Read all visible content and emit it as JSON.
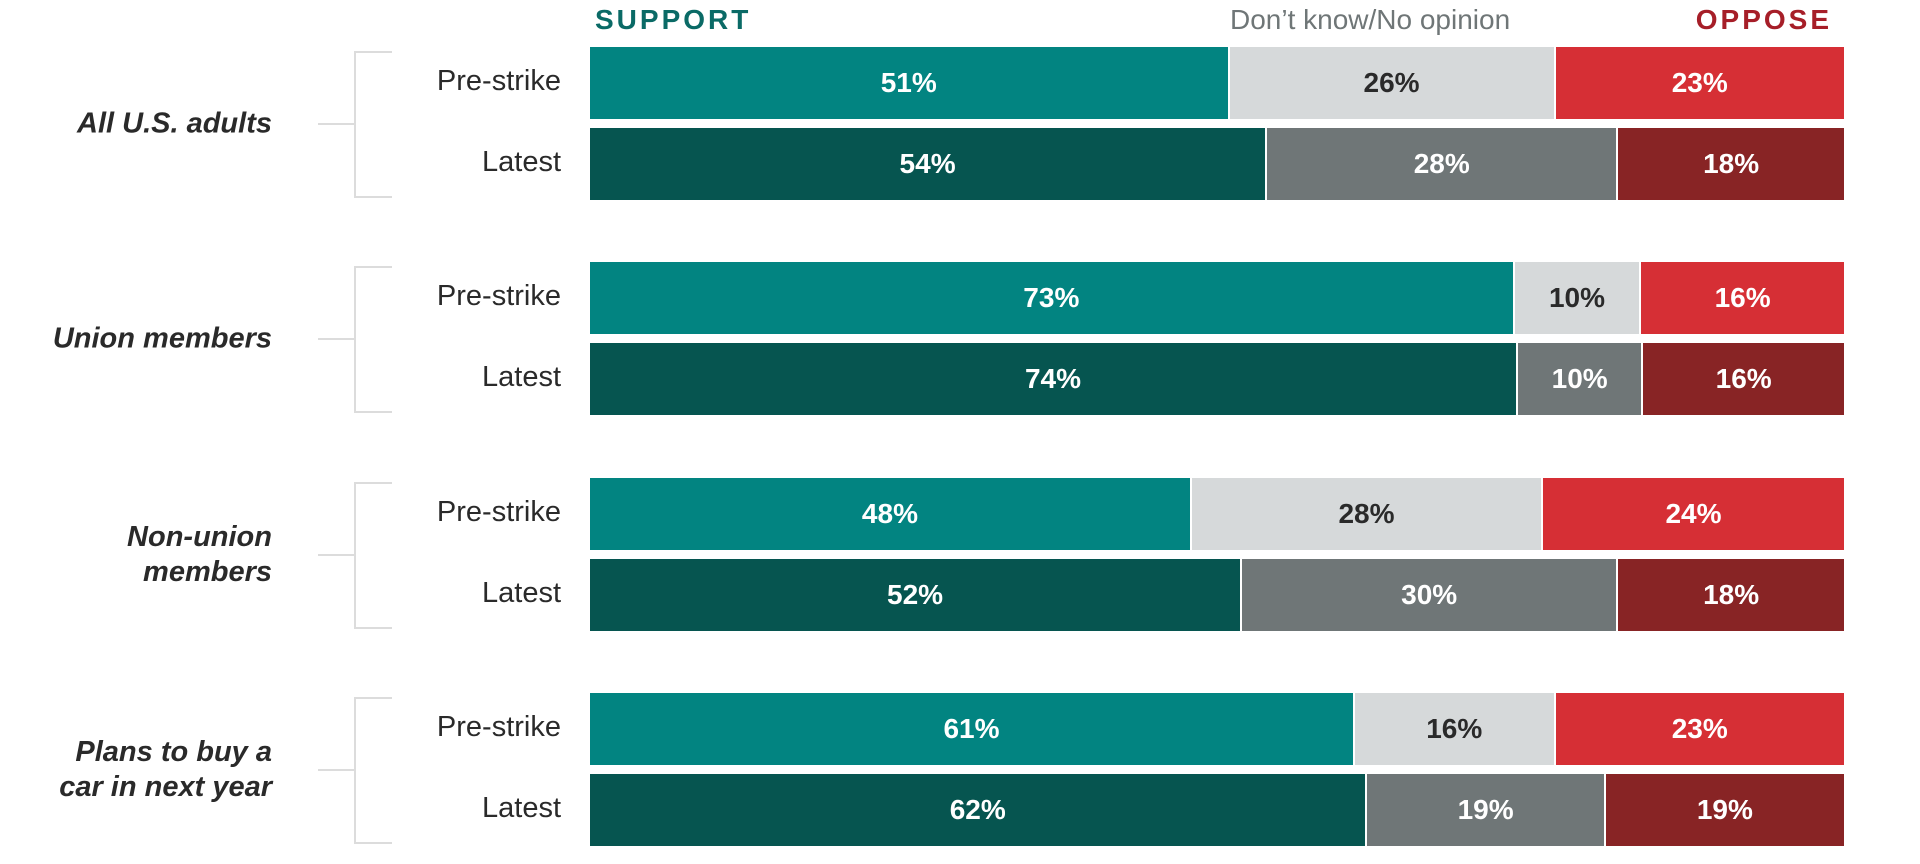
{
  "chart_data": {
    "type": "bar",
    "orientation": "horizontal",
    "stacked": true,
    "normalized": true,
    "title": "",
    "legend": [
      "SUPPORT",
      "Don’t know/No opinion",
      "OPPOSE"
    ],
    "legend_position": "top",
    "series_colors": {
      "SUPPORT": {
        "pre_strike": "#028481",
        "latest": "#065550"
      },
      "Don’t know/No opinion": {
        "pre_strike": "#d6d9da",
        "latest": "#6f7677"
      },
      "OPPOSE": {
        "pre_strike": "#d62f35",
        "latest": "#882425"
      }
    },
    "xlim": [
      0,
      100
    ],
    "grid": false,
    "groups": [
      {
        "label": "All U.S. adults",
        "rows": [
          {
            "label": "Pre-strike",
            "support": 51,
            "dont_know": 26,
            "oppose": 23
          },
          {
            "label": "Latest",
            "support": 54,
            "dont_know": 28,
            "oppose": 18
          }
        ]
      },
      {
        "label": "Union members",
        "rows": [
          {
            "label": "Pre-strike",
            "support": 73,
            "dont_know": 10,
            "oppose": 16
          },
          {
            "label": "Latest",
            "support": 74,
            "dont_know": 10,
            "oppose": 16
          }
        ]
      },
      {
        "label": "Non-union members",
        "rows": [
          {
            "label": "Pre-strike",
            "support": 48,
            "dont_know": 28,
            "oppose": 24
          },
          {
            "label": "Latest",
            "support": 52,
            "dont_know": 30,
            "oppose": 18
          }
        ]
      },
      {
        "label": "Plans to buy a car in next year",
        "rows": [
          {
            "label": "Pre-strike",
            "support": 61,
            "dont_know": 16,
            "oppose": 23
          },
          {
            "label": "Latest",
            "support": 62,
            "dont_know": 19,
            "oppose": 19
          }
        ]
      }
    ]
  },
  "legend": {
    "support": "SUPPORT",
    "dont_know": "Don’t know/No opinion",
    "oppose": "OPPOSE"
  },
  "groups": [
    {
      "label": "All U.S. adults",
      "rows": [
        {
          "label": "Pre-strike",
          "support": "51%",
          "dont_know": "26%",
          "oppose": "23%"
        },
        {
          "label": "Latest",
          "support": "54%",
          "dont_know": "28%",
          "oppose": "18%"
        }
      ]
    },
    {
      "label": "Union members",
      "rows": [
        {
          "label": "Pre-strike",
          "support": "73%",
          "dont_know": "10%",
          "oppose": "16%"
        },
        {
          "label": "Latest",
          "support": "74%",
          "dont_know": "10%",
          "oppose": "16%"
        }
      ]
    },
    {
      "label": "Non-union\nmembers",
      "rows": [
        {
          "label": "Pre-strike",
          "support": "48%",
          "dont_know": "28%",
          "oppose": "24%"
        },
        {
          "label": "Latest",
          "support": "52%",
          "dont_know": "30%",
          "oppose": "18%"
        }
      ]
    },
    {
      "label": "Plans to buy a\ncar in next year",
      "rows": [
        {
          "label": "Pre-strike",
          "support": "61%",
          "dont_know": "16%",
          "oppose": "23%"
        },
        {
          "label": "Latest",
          "support": "62%",
          "dont_know": "19%",
          "oppose": "19%"
        }
      ]
    }
  ]
}
